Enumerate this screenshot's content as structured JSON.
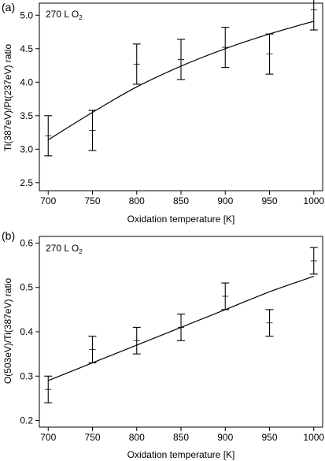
{
  "chart_data": [
    {
      "panel_label": "(a)",
      "type": "scatter",
      "annotation": "270 L O",
      "annotation_subscript": "2",
      "xlabel": "Oxidation temperature [K]",
      "ylabel": "Ti(387eV)/Pt(237eV) ratio",
      "xlim": [
        690,
        1010
      ],
      "ylim": [
        2.38,
        5.18
      ],
      "xticks": [
        700,
        750,
        800,
        850,
        900,
        950,
        1000
      ],
      "xtick_labels": [
        "700",
        "750",
        "800",
        "850",
        "900",
        "950",
        "1000"
      ],
      "yticks": [
        2.5,
        3.0,
        3.5,
        4.0,
        4.5,
        5.0
      ],
      "ytick_labels": [
        "2.5",
        "3.0",
        "3.5",
        "4.0",
        "4.5",
        "5.0"
      ],
      "grid": false,
      "points": [
        {
          "x": 700,
          "y": 3.2,
          "yerr": 0.3
        },
        {
          "x": 750,
          "y": 3.28,
          "yerr": 0.3
        },
        {
          "x": 800,
          "y": 4.27,
          "yerr": 0.3
        },
        {
          "x": 850,
          "y": 4.34,
          "yerr": 0.3
        },
        {
          "x": 900,
          "y": 4.52,
          "yerr": 0.3
        },
        {
          "x": 950,
          "y": 4.42,
          "yerr": 0.3
        },
        {
          "x": 1000,
          "y": 5.08,
          "yerr": 0.3
        }
      ],
      "fit_curve": {
        "x": [
          700,
          750,
          800,
          850,
          900,
          950,
          1000
        ],
        "y": [
          3.14,
          3.55,
          3.93,
          4.24,
          4.5,
          4.72,
          4.91
        ]
      }
    },
    {
      "panel_label": "(b)",
      "type": "scatter",
      "annotation": "270 L O",
      "annotation_subscript": "2",
      "xlabel": "Oxidation temperature [K]",
      "ylabel": "O(503eV)/Ti(387eV) ratio",
      "xlim": [
        690,
        1010
      ],
      "ylim": [
        0.185,
        0.615
      ],
      "xticks": [
        700,
        750,
        800,
        850,
        900,
        950,
        1000
      ],
      "xtick_labels": [
        "700",
        "750",
        "800",
        "850",
        "900",
        "950",
        "1000"
      ],
      "yticks": [
        0.2,
        0.3,
        0.4,
        0.5,
        0.6
      ],
      "ytick_labels": [
        "0.2",
        "0.3",
        "0.4",
        "0.5",
        "0.6"
      ],
      "grid": false,
      "points": [
        {
          "x": 700,
          "y": 0.27,
          "yerr": 0.03
        },
        {
          "x": 750,
          "y": 0.36,
          "yerr": 0.03
        },
        {
          "x": 800,
          "y": 0.38,
          "yerr": 0.03
        },
        {
          "x": 850,
          "y": 0.41,
          "yerr": 0.03
        },
        {
          "x": 900,
          "y": 0.48,
          "yerr": 0.03
        },
        {
          "x": 950,
          "y": 0.42,
          "yerr": 0.03
        },
        {
          "x": 1000,
          "y": 0.56,
          "yerr": 0.03
        }
      ],
      "fit_curve": {
        "x": [
          700,
          750,
          800,
          850,
          900,
          950,
          1000
        ],
        "y": [
          0.29,
          0.33,
          0.37,
          0.41,
          0.45,
          0.49,
          0.525
        ]
      }
    }
  ]
}
